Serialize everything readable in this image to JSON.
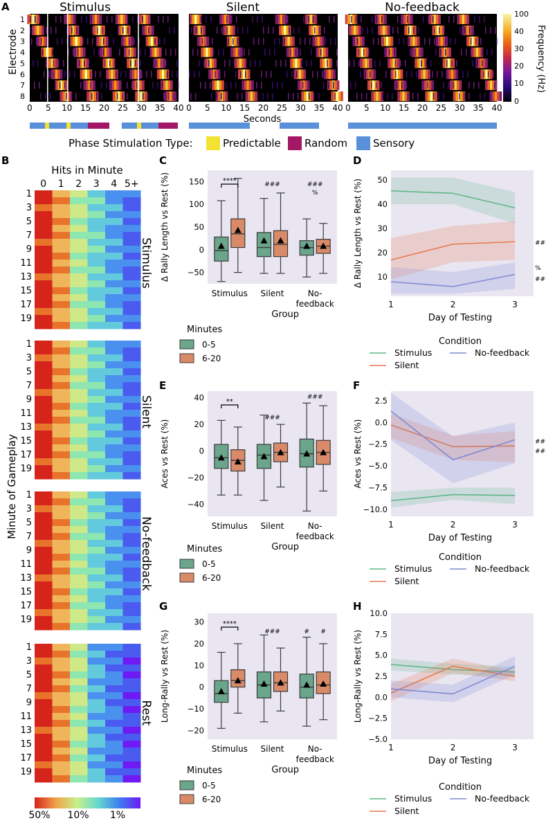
{
  "colors": {
    "box_early": "#6aa58c",
    "box_late": "#d98a68",
    "bg": "#e9e6f2",
    "stimulus": "#5eb587",
    "silent": "#e8784a",
    "nofeedback": "#7f8ad2",
    "predictable": "#f3e234",
    "random": "#a31866",
    "sensory": "#5a8fda"
  },
  "panel_a": {
    "letter": "A",
    "titles": [
      "Stimulus",
      "Silent",
      "No-feedback"
    ],
    "ylabel": "Electrode",
    "ytick_labels": [
      "1",
      "2",
      "3",
      "4",
      "5",
      "6",
      "7",
      "8"
    ],
    "xtick_labels": [
      "0",
      "5",
      "10",
      "15",
      "20",
      "25",
      "30",
      "35",
      "40"
    ],
    "xlabel": "Seconds",
    "colorbar_label": "Frequency (Hz)",
    "colorbar_ticks": [
      "100",
      "40",
      "30",
      "20",
      "10",
      "0"
    ],
    "legend_title": "Phase Stimulation Type:",
    "legend_items": [
      "Predictable",
      "Random",
      "Sensory"
    ]
  },
  "panel_b": {
    "letter": "B",
    "column_title": "Hits in Minute",
    "column_labels": [
      "0",
      "1",
      "2",
      "3",
      "4",
      "5+"
    ],
    "row_labels": [
      "1",
      "3",
      "5",
      "7",
      "9",
      "11",
      "13",
      "15",
      "17",
      "19"
    ],
    "ylabel": "Minute of Gameplay",
    "conditions": [
      "Stimulus",
      "Silent",
      "No-feedback",
      "Rest"
    ],
    "colorbar_ticks": [
      "50%",
      "10%",
      "1%"
    ]
  },
  "chart_data": [
    {
      "panel": "C",
      "type": "box",
      "ylabel": "Δ Rally Length vs Rest (%)",
      "xlabel": "Group",
      "categories": [
        "Stimulus",
        "Silent",
        "No-\nfeedback"
      ],
      "category_labels": [
        "Stimulus",
        "Silent",
        "No-",
        "feedback"
      ],
      "ylim": [
        -75,
        175
      ],
      "yticks": [
        -50,
        0,
        50,
        100,
        150
      ],
      "legend_title": "Minutes",
      "series_names": [
        "0-5",
        "6-20"
      ],
      "boxes": [
        {
          "q1": -25,
          "median": -2,
          "q3": 28,
          "wlo": -70,
          "whi": 108,
          "mean": 8
        },
        {
          "q1": 5,
          "median": 35,
          "q3": 68,
          "wlo": -50,
          "whi": 157,
          "mean": 43
        },
        {
          "q1": -15,
          "median": 5,
          "q3": 38,
          "wlo": -52,
          "whi": 113,
          "mean": 20
        },
        {
          "q1": -15,
          "median": 12,
          "q3": 42,
          "wlo": -52,
          "whi": 125,
          "mean": 20
        },
        {
          "q1": -12,
          "median": 5,
          "q3": 20,
          "wlo": -60,
          "whi": 68,
          "mean": 8
        },
        {
          "q1": -8,
          "median": 8,
          "q3": 23,
          "wlo": -52,
          "whi": 58,
          "mean": 8
        }
      ],
      "bracket_label": "****",
      "annotations": [
        "###",
        "###",
        "%"
      ]
    },
    {
      "panel": "E",
      "type": "box",
      "ylabel": "Aces vs Rest (%)",
      "xlabel": "Group",
      "category_labels": [
        "Stimulus",
        "Silent",
        "No-",
        "feedback"
      ],
      "ylim": [
        -49,
        45
      ],
      "yticks": [
        -40,
        -20,
        0,
        20,
        40
      ],
      "legend_title": "Minutes",
      "series_names": [
        "0-5",
        "6-20"
      ],
      "boxes": [
        {
          "q1": -13,
          "median": -5,
          "q3": 5,
          "wlo": -33,
          "whi": 23,
          "mean": -5
        },
        {
          "q1": -15,
          "median": -7,
          "q3": 1,
          "wlo": -33,
          "whi": 18,
          "mean": -8
        },
        {
          "q1": -13,
          "median": -3,
          "q3": 5,
          "wlo": -37,
          "whi": 27,
          "mean": -4
        },
        {
          "q1": -8,
          "median": -1,
          "q3": 6,
          "wlo": -27,
          "whi": 20,
          "mean": -1
        },
        {
          "q1": -12,
          "median": -2,
          "q3": 9,
          "wlo": -45,
          "whi": 36,
          "mean": -2
        },
        {
          "q1": -10,
          "median": -1,
          "q3": 8,
          "wlo": -30,
          "whi": 34,
          "mean": -1
        }
      ],
      "bracket_label": "**",
      "annotations": [
        "###",
        "###"
      ]
    },
    {
      "panel": "G",
      "type": "box",
      "ylabel": "Long-Rally vs Rest (%)",
      "xlabel": "Group",
      "category_labels": [
        "Stimulus",
        "Silent",
        "No-",
        "feedback"
      ],
      "ylim": [
        -24,
        34
      ],
      "yticks": [
        -20,
        -10,
        0,
        10,
        20,
        30
      ],
      "legend_title": "Minutes",
      "series_names": [
        "0-5",
        "6-20"
      ],
      "boxes": [
        {
          "q1": -7,
          "median": -3,
          "q3": 3,
          "wlo": -19,
          "whi": 16,
          "mean": -2
        },
        {
          "q1": 0,
          "median": 3,
          "q3": 8,
          "wlo": -12,
          "whi": 20,
          "mean": 3
        },
        {
          "q1": -5,
          "median": 1,
          "q3": 7,
          "wlo": -16,
          "whi": 24,
          "mean": 1.5
        },
        {
          "q1": -2,
          "median": 2,
          "q3": 7,
          "wlo": -11,
          "whi": 18,
          "mean": 2
        },
        {
          "q1": -5,
          "median": 0,
          "q3": 6,
          "wlo": -18,
          "whi": 23,
          "mean": 1
        },
        {
          "q1": -3,
          "median": 1,
          "q3": 7,
          "wlo": -15,
          "whi": 20,
          "mean": 1.5
        }
      ],
      "bracket_label": "****",
      "annotations": [
        "###",
        "#",
        "#"
      ]
    },
    {
      "panel": "D",
      "type": "line",
      "ylabel": "Δ Rally Length vs Rest (%)",
      "xlabel": "Day of Testing",
      "x": [
        1,
        2,
        3
      ],
      "xlim": [
        1,
        3.3
      ],
      "ylim": [
        2,
        54
      ],
      "yticks": [
        10,
        20,
        30,
        40,
        50
      ],
      "legend_title": "Condition",
      "series": [
        {
          "name": "Stimulus",
          "values": [
            45.5,
            44.5,
            38.5
          ],
          "lo": [
            40,
            40,
            32
          ],
          "hi": [
            51,
            51,
            45
          ]
        },
        {
          "name": "Silent",
          "values": [
            17,
            23.5,
            24.5
          ],
          "lo": [
            9,
            16,
            17
          ],
          "hi": [
            26,
            31,
            33
          ]
        },
        {
          "name": "No-feedback",
          "values": [
            8,
            6,
            11
          ],
          "lo": [
            3,
            3,
            5
          ],
          "hi": [
            14,
            12,
            16
          ]
        }
      ],
      "annotations": [
        "###",
        "%",
        "###"
      ]
    },
    {
      "panel": "F",
      "type": "line",
      "ylabel": "Aces vs Rest (%)",
      "xlabel": "Day of Testing",
      "x": [
        1,
        2,
        3
      ],
      "xlim": [
        1,
        3.3
      ],
      "ylim": [
        -10.8,
        3.6
      ],
      "yticks": [
        -10.0,
        -7.5,
        -5.0,
        -2.5,
        0.0,
        2.5
      ],
      "ytick_labels": [
        "−10.0",
        "−7.5",
        "−5.0",
        "−2.5",
        "0.0",
        "2.5"
      ],
      "legend_title": "Condition",
      "series": [
        {
          "name": "Stimulus",
          "values": [
            -9,
            -8.3,
            -8.4
          ],
          "lo": [
            -9.8,
            -8.9,
            -9.4
          ],
          "hi": [
            -8,
            -7.5,
            -7.5
          ]
        },
        {
          "name": "Silent",
          "values": [
            -0.3,
            -2.8,
            -2.7
          ],
          "lo": [
            -1.8,
            -4.3,
            -4.6
          ],
          "hi": [
            1,
            -1.5,
            -1
          ]
        },
        {
          "name": "No-feedback",
          "values": [
            1.3,
            -4.3,
            -2
          ],
          "lo": [
            -2,
            -7,
            -4.7
          ],
          "hi": [
            3.4,
            -1.6,
            0
          ]
        }
      ],
      "annotations": [
        "###",
        "###"
      ]
    },
    {
      "panel": "H",
      "type": "line",
      "ylabel": "Long-Rally vs Rest (%)",
      "xlabel": "Day of Testing",
      "x": [
        1,
        2,
        3
      ],
      "xlim": [
        1,
        3.3
      ],
      "ylim": [
        -5,
        10
      ],
      "yticks": [
        -5,
        -2.5,
        0,
        2.5,
        5,
        7.5,
        10
      ],
      "ytick_labels": [
        "−5.0",
        "−2.5",
        "0.0",
        "2.5",
        "5.0",
        "7.5",
        "10.0"
      ],
      "legend_title": "Condition",
      "series": [
        {
          "name": "Stimulus",
          "values": [
            3.9,
            3.3,
            3
          ],
          "lo": [
            3.2,
            2.7,
            2.4
          ],
          "hi": [
            4.6,
            4,
            3.6
          ]
        },
        {
          "name": "Silent",
          "values": [
            0.5,
            3.7,
            2.5
          ],
          "lo": [
            -0.5,
            2.9,
            1.9
          ],
          "hi": [
            1.6,
            4.6,
            3.1
          ]
        },
        {
          "name": "No-feedback",
          "values": [
            1,
            0.4,
            3.7
          ],
          "lo": [
            0,
            -0.6,
            2.7
          ],
          "hi": [
            2,
            1.5,
            4.9
          ]
        }
      ],
      "annotations": []
    }
  ]
}
